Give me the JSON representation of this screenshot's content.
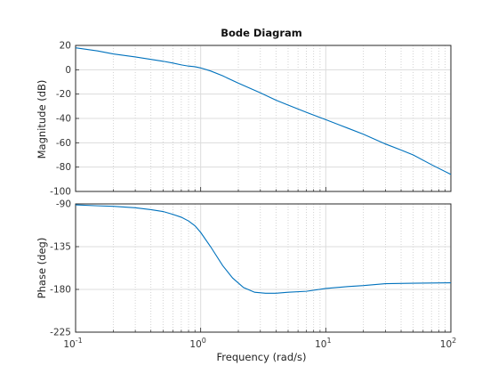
{
  "chart_data": {
    "type": "line",
    "title": "Bode Diagram",
    "xlabel": "Frequency  (rad/s)",
    "xscale": "log",
    "xlim": [
      0.1,
      100
    ],
    "x_ticks": [
      {
        "value": 0.1,
        "base": "10",
        "exp": "-1"
      },
      {
        "value": 1,
        "base": "10",
        "exp": "0"
      },
      {
        "value": 10,
        "base": "10",
        "exp": "1"
      },
      {
        "value": 100,
        "base": "10",
        "exp": "2"
      }
    ],
    "grid": true,
    "color": "#0072bd",
    "panels": [
      {
        "name": "magnitude",
        "ylabel": "Magnitude (dB)",
        "ylim": [
          -100,
          20
        ],
        "yticks": [
          20,
          0,
          -20,
          -40,
          -60,
          -80,
          -100
        ],
        "series": [
          {
            "x": [
              0.1,
              0.15,
              0.2,
              0.3,
              0.4,
              0.5,
              0.6,
              0.7,
              0.8,
              0.9,
              1.0,
              1.2,
              1.5,
              2,
              3,
              4,
              5,
              7,
              10,
              15,
              20,
              30,
              40,
              50,
              70,
              100
            ],
            "y": [
              18,
              15.5,
              13,
              10.5,
              8.5,
              7,
              5.5,
              4,
              3,
              2.5,
              1.5,
              -1,
              -5,
              -11,
              -19,
              -25,
              -29,
              -35,
              -41,
              -48,
              -53,
              -61,
              -66,
              -70,
              -78,
              -86
            ]
          }
        ]
      },
      {
        "name": "phase",
        "ylabel": "Phase (deg)",
        "ylim": [
          -225,
          -90
        ],
        "yticks": [
          -90,
          -135,
          -180,
          -225
        ],
        "series": [
          {
            "x": [
              0.1,
              0.15,
              0.2,
              0.3,
              0.4,
              0.5,
              0.6,
              0.7,
              0.8,
              0.9,
              1.0,
              1.2,
              1.5,
              1.8,
              2.2,
              2.7,
              3.3,
              4,
              5,
              7,
              10,
              15,
              20,
              30,
              50,
              100
            ],
            "y": [
              -91,
              -92,
              -92.5,
              -94,
              -96,
              -98,
              -101,
              -104,
              -108,
              -113,
              -120,
              -135,
              -155,
              -168,
              -178,
              -183,
              -184,
              -184,
              -183,
              -182,
              -179,
              -177,
              -176,
              -174,
              -173.5,
              -173
            ]
          }
        ]
      }
    ]
  }
}
